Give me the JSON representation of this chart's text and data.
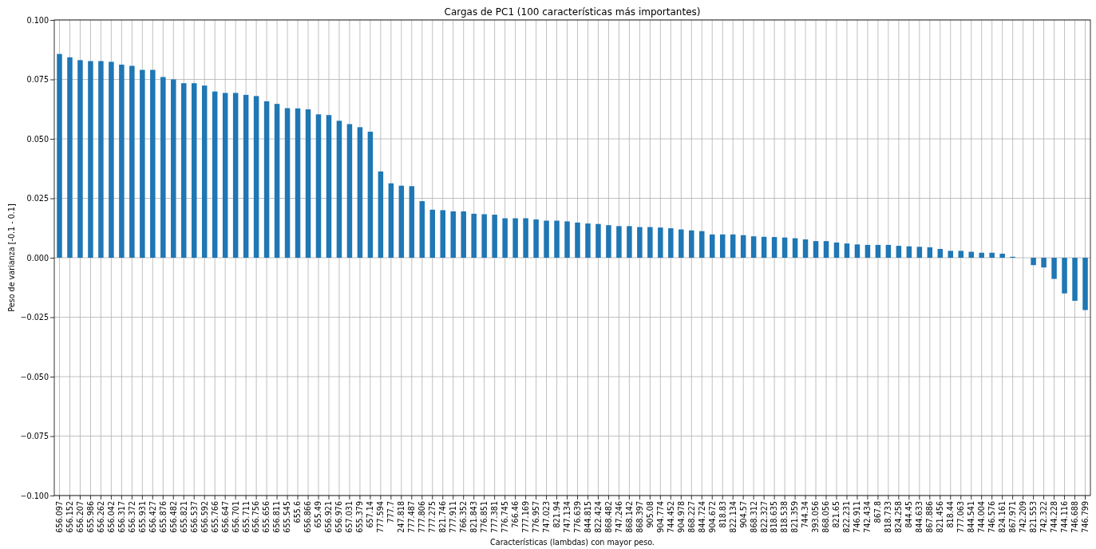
{
  "chart_data": {
    "type": "bar",
    "title": "Cargas de PC1 (100 características más importantes)",
    "xlabel": "Características (lambdas) con mayor peso.",
    "ylabel": "Peso de varianza [-0.1 - 0.1]",
    "categories": [
      "656.097",
      "656.152",
      "656.207",
      "655.986",
      "656.262",
      "656.042",
      "656.317",
      "656.372",
      "655.931",
      "656.427",
      "655.876",
      "656.482",
      "655.821",
      "656.537",
      "656.592",
      "655.766",
      "656.647",
      "656.701",
      "655.711",
      "656.756",
      "655.656",
      "656.811",
      "655.545",
      "655.6",
      "656.866",
      "655.49",
      "656.921",
      "656.976",
      "657.031",
      "655.379",
      "657.14",
      "777.594",
      "777.7",
      "247.818",
      "777.487",
      "777.806",
      "777.275",
      "821.746",
      "777.911",
      "766.352",
      "821.843",
      "776.851",
      "777.381",
      "776.745",
      "766.46",
      "777.169",
      "776.957",
      "747.023",
      "821.94",
      "747.134",
      "776.639",
      "844.815",
      "822.424",
      "868.482",
      "747.246",
      "868.142",
      "868.397",
      "905.08",
      "904.774",
      "744.452",
      "904.978",
      "868.227",
      "844.724",
      "904.672",
      "818.83",
      "822.134",
      "904.57",
      "868.312",
      "822.327",
      "818.635",
      "818.538",
      "821.359",
      "744.34",
      "393.056",
      "868.056",
      "821.65",
      "822.231",
      "746.911",
      "742.434",
      "867.8",
      "818.733",
      "824.258",
      "844.45",
      "844.633",
      "867.886",
      "821.456",
      "818.44",
      "777.063",
      "844.541",
      "744.004",
      "746.576",
      "824.161",
      "867.971",
      "742.209",
      "821.553",
      "742.322",
      "744.228",
      "744.116",
      "746.688",
      "746.799"
    ],
    "values": [
      0.0857,
      0.0843,
      0.0831,
      0.0827,
      0.0827,
      0.0824,
      0.0812,
      0.0807,
      0.079,
      0.079,
      0.076,
      0.075,
      0.0734,
      0.0734,
      0.0724,
      0.0699,
      0.0693,
      0.0693,
      0.0685,
      0.068,
      0.0658,
      0.0647,
      0.0629,
      0.0628,
      0.0624,
      0.0603,
      0.06,
      0.0576,
      0.0562,
      0.0549,
      0.053,
      0.0363,
      0.0313,
      0.0303,
      0.0301,
      0.0238,
      0.0202,
      0.02,
      0.0195,
      0.0195,
      0.0185,
      0.0183,
      0.0181,
      0.0166,
      0.0166,
      0.0166,
      0.0161,
      0.0156,
      0.0156,
      0.0153,
      0.0148,
      0.0144,
      0.0142,
      0.0137,
      0.0133,
      0.0133,
      0.0129,
      0.0129,
      0.0127,
      0.0124,
      0.0119,
      0.0115,
      0.0112,
      0.0098,
      0.0098,
      0.0098,
      0.0095,
      0.009,
      0.0088,
      0.0087,
      0.0085,
      0.0082,
      0.0077,
      0.007,
      0.007,
      0.0064,
      0.006,
      0.0056,
      0.0054,
      0.0054,
      0.0054,
      0.005,
      0.0048,
      0.0046,
      0.0044,
      0.0037,
      0.0029,
      0.0029,
      0.0025,
      0.0021,
      0.0021,
      0.0017,
      0.0004,
      null,
      -0.0031,
      -0.0041,
      -0.0089,
      -0.015,
      -0.0181,
      -0.022
    ],
    "color": "#1f77b4",
    "ylim": [
      -0.1,
      0.1
    ],
    "yticks": [
      {
        "value": -0.1,
        "label": "−0.100"
      },
      {
        "value": -0.075,
        "label": "−0.075"
      },
      {
        "value": -0.05,
        "label": "−0.050"
      },
      {
        "value": -0.025,
        "label": "−0.025"
      },
      {
        "value": 0,
        "label": "0.000"
      },
      {
        "value": 0.025,
        "label": "0.025"
      },
      {
        "value": 0.05,
        "label": "0.050"
      },
      {
        "value": 0.075,
        "label": "0.075"
      },
      {
        "value": 0.1,
        "label": "0.100"
      }
    ],
    "grid": true
  }
}
